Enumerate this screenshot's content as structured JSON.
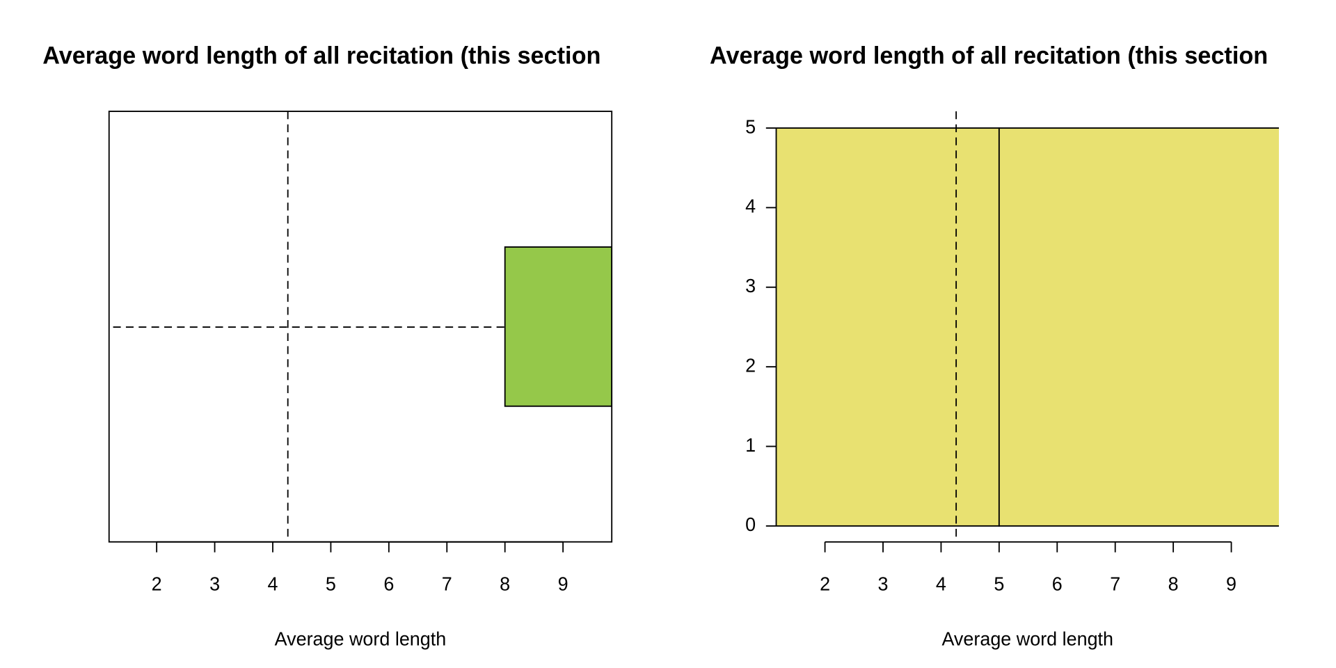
{
  "chart_data": [
    {
      "type": "boxplot",
      "title": "Average word length of all recitation (this section",
      "x_label": "Average word length",
      "whisker_low": 1.25,
      "q1": 8,
      "q3": 9.84,
      "mean_line": 4.26,
      "color": "#95c84a",
      "xlim": [
        1.18,
        9.84
      ],
      "xticks": [
        2,
        3,
        4,
        5,
        6,
        7,
        8,
        9
      ]
    },
    {
      "type": "histogram",
      "title": "Average word length of all recitation (this section",
      "x_label": "Average word length",
      "bins": [
        1,
        5,
        10
      ],
      "values": [
        5,
        5
      ],
      "mean_line": 4.26,
      "color": "#e8e171",
      "xlim": [
        1.16,
        9.82
      ],
      "xticks": [
        2,
        3,
        4,
        5,
        6,
        7,
        8,
        9
      ],
      "ylim": [
        -0.2,
        5.21
      ],
      "yticks": [
        0,
        1,
        2,
        3,
        4,
        5
      ]
    }
  ]
}
